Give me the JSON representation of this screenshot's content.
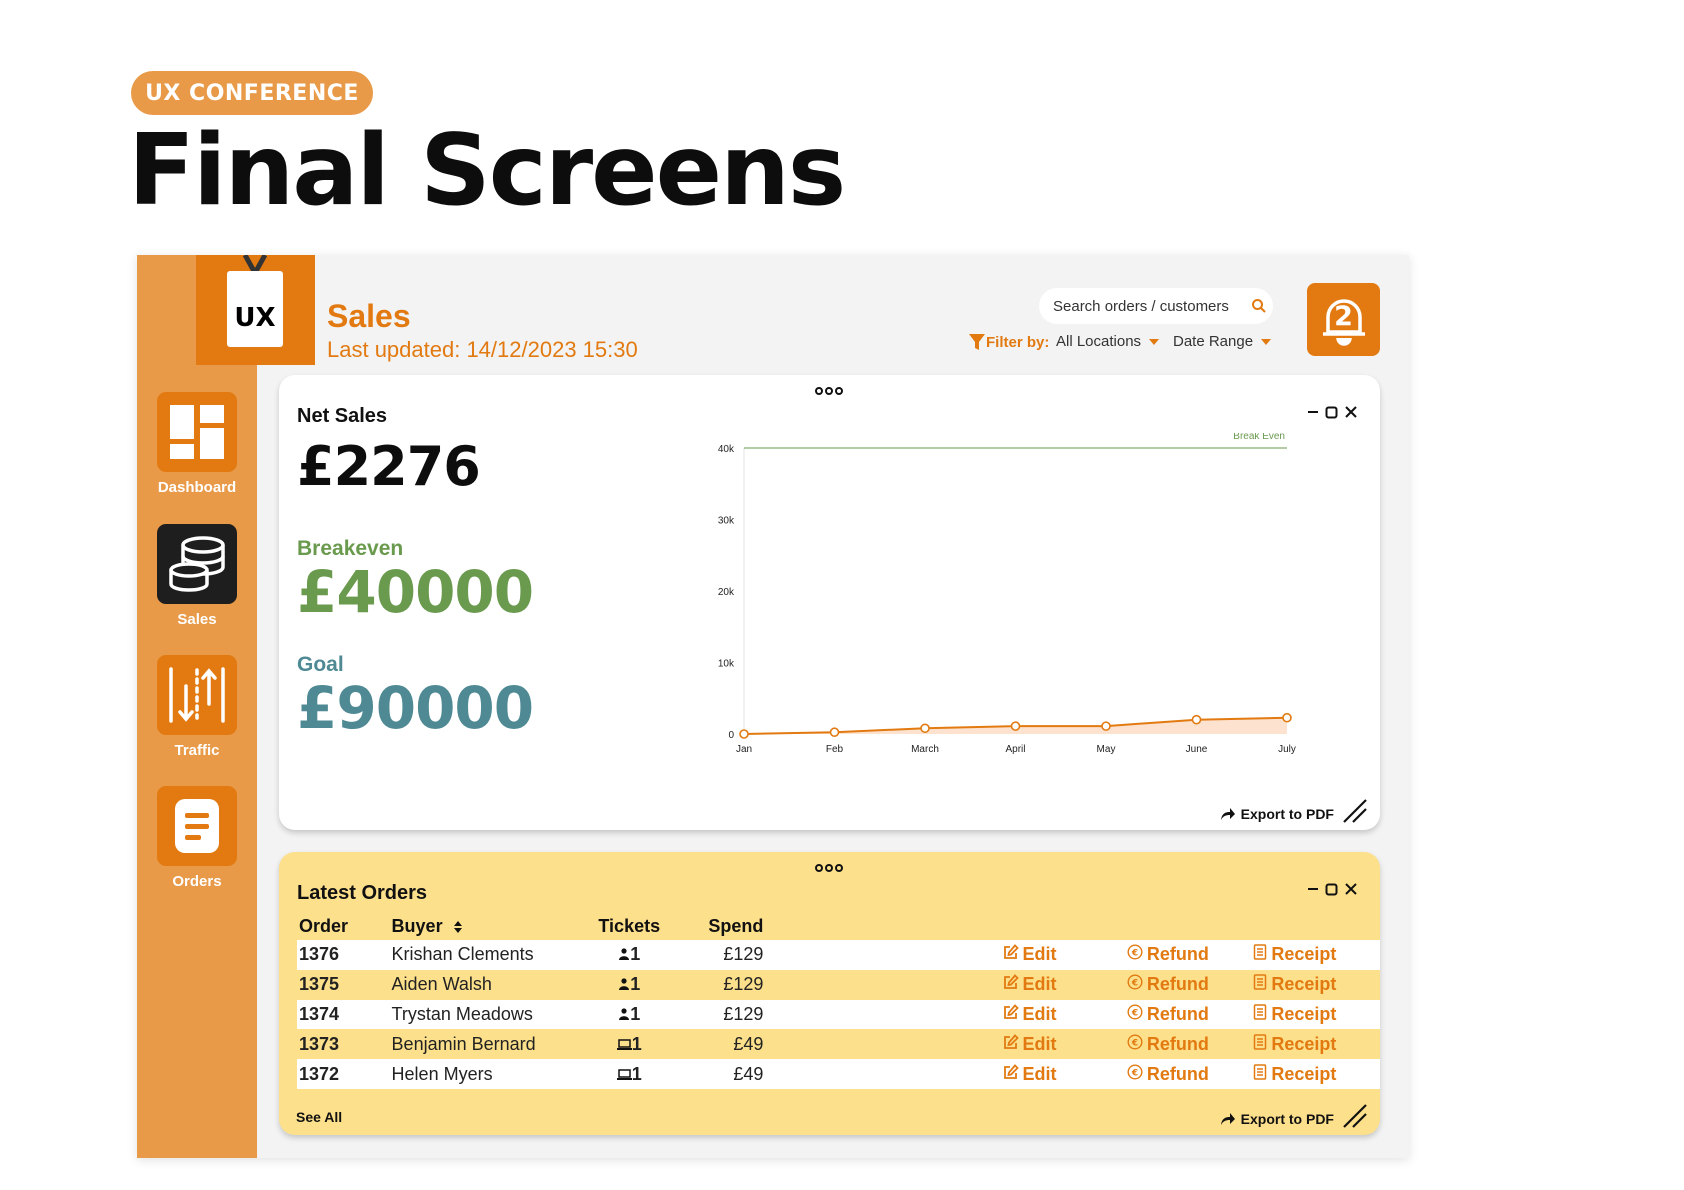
{
  "slide": {
    "tag": "UX CONFERENCE",
    "title": "Final Screens"
  },
  "app": {
    "logo_text": "UX",
    "nav": [
      {
        "label": "Dashboard",
        "icon": "dashboard-icon",
        "active": false
      },
      {
        "label": "Sales",
        "icon": "coins-icon",
        "active": true
      },
      {
        "label": "Traffic",
        "icon": "traffic-icon",
        "active": false
      },
      {
        "label": "Orders",
        "icon": "orders-icon",
        "active": false
      }
    ],
    "header": {
      "title": "Sales",
      "updated": "Last updated: 14/12/2023 15:30"
    },
    "search": {
      "placeholder": "Search orders / customers"
    },
    "filter": {
      "label": "Filter by:",
      "location": "All Locations",
      "range": "Date Range"
    },
    "notifications": {
      "count": "2"
    },
    "colors": {
      "accent": "#e27a11",
      "sidebar": "#e89a49",
      "breakeven": "#6a9a4e",
      "goal": "#4f8a94",
      "orders_bg": "#fde08b"
    }
  },
  "sales_card": {
    "title": "Net Sales",
    "net_value": "£2276",
    "breakeven_label": "Breakeven",
    "breakeven_value": "£40000",
    "goal_label": "Goal",
    "goal_value": "£90000",
    "export_label": "Export to PDF"
  },
  "chart_data": {
    "type": "area",
    "title": "",
    "xlabel": "",
    "ylabel": "",
    "categories": [
      "Jan",
      "Feb",
      "March",
      "April",
      "May",
      "June",
      "July"
    ],
    "series": [
      {
        "values": [
          0,
          250,
          800,
          1100,
          1100,
          2000,
          2276
        ],
        "color": "#e27a11"
      }
    ],
    "reference_line": {
      "label": "Break Even",
      "value": 40000,
      "color": "#6a9a4e"
    },
    "ylim": [
      0,
      40000
    ],
    "yticks": [
      0,
      10000,
      20000,
      30000,
      40000
    ],
    "ytick_labels": [
      "0",
      "10k",
      "20k",
      "30k",
      "40k"
    ],
    "grid": false,
    "legend": "none"
  },
  "orders_card": {
    "title": "Latest Orders",
    "columns": {
      "order": "Order",
      "buyer": "Buyer",
      "tickets": "Tickets",
      "spend": "Spend"
    },
    "actions": {
      "edit": "Edit",
      "refund": "Refund",
      "receipt": "Receipt"
    },
    "rows": [
      {
        "order": "1376",
        "buyer": "Krishan Clements",
        "ticket_type": "person",
        "tickets": "1",
        "spend": "£129"
      },
      {
        "order": "1375",
        "buyer": "Aiden Walsh",
        "ticket_type": "person",
        "tickets": "1",
        "spend": "£129"
      },
      {
        "order": "1374",
        "buyer": "Trystan Meadows",
        "ticket_type": "person",
        "tickets": "1",
        "spend": "£129"
      },
      {
        "order": "1373",
        "buyer": "Benjamin Bernard",
        "ticket_type": "laptop",
        "tickets": "1",
        "spend": "£49"
      },
      {
        "order": "1372",
        "buyer": "Helen Myers",
        "ticket_type": "laptop",
        "tickets": "1",
        "spend": "£49"
      }
    ],
    "see_all": "See All",
    "export_label": "Export to PDF"
  }
}
